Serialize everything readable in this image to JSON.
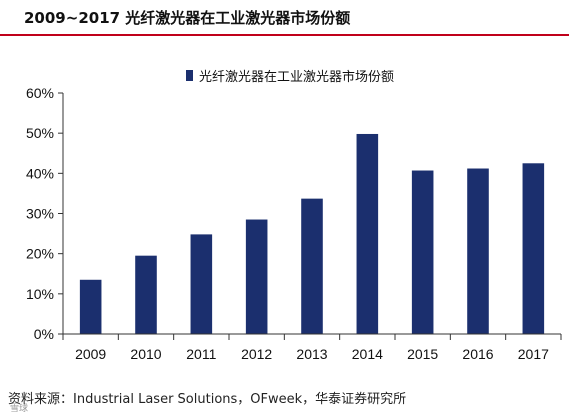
{
  "title": "2009~2017 光纤激光器在工业激光器市场份额",
  "source": "资料来源：Industrial Laser Solutions，OFweek，华泰证券研究所",
  "watermark": "雪球",
  "colors": {
    "bar": "#1b2f6e",
    "title_rule": "#c0001a",
    "axis": "#333333"
  },
  "chart_data": {
    "type": "bar",
    "title": "",
    "xlabel": "",
    "ylabel": "",
    "categories": [
      "2009",
      "2010",
      "2011",
      "2012",
      "2013",
      "2014",
      "2015",
      "2016",
      "2017"
    ],
    "series": [
      {
        "name": "光纤激光器在工业激光器市场份额",
        "values": [
          13.5,
          19.5,
          24.8,
          28.5,
          33.7,
          49.8,
          40.7,
          41.2,
          42.5
        ]
      }
    ],
    "ylim": [
      0,
      60
    ],
    "yticks": [
      0,
      10,
      20,
      30,
      40,
      50,
      60
    ],
    "ytick_labels": [
      "0%",
      "10%",
      "20%",
      "30%",
      "40%",
      "50%",
      "60%"
    ],
    "legend_position": "top-center",
    "grid": false
  }
}
